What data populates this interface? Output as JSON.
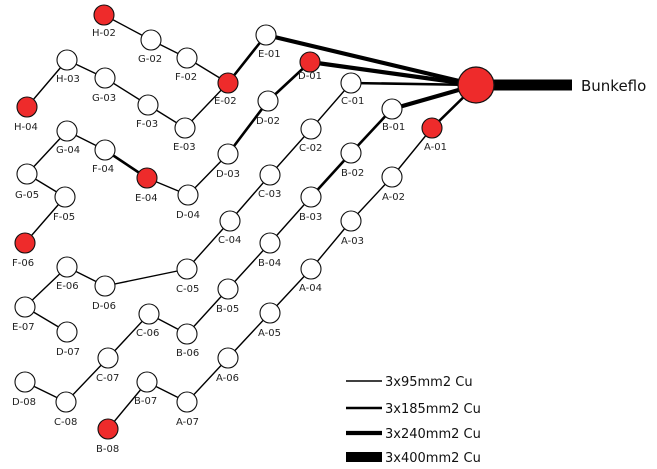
{
  "hub": {
    "label": "Bunkeflo",
    "color": "#ee2b2b"
  },
  "colors": {
    "unit": "#ffffff",
    "highlight": "#ee2b2b",
    "stroke": "#111111"
  },
  "nodes": [
    {
      "id": "H-02",
      "highlight": true
    },
    {
      "id": "G-02"
    },
    {
      "id": "F-02"
    },
    {
      "id": "E-02",
      "highlight": true
    },
    {
      "id": "E-01"
    },
    {
      "id": "H-03"
    },
    {
      "id": "H-04",
      "highlight": true
    },
    {
      "id": "G-03"
    },
    {
      "id": "F-03"
    },
    {
      "id": "E-03"
    },
    {
      "id": "D-01",
      "highlight": true
    },
    {
      "id": "D-02"
    },
    {
      "id": "D-03"
    },
    {
      "id": "D-04"
    },
    {
      "id": "E-04",
      "highlight": true
    },
    {
      "id": "F-04"
    },
    {
      "id": "G-04"
    },
    {
      "id": "G-05"
    },
    {
      "id": "F-05"
    },
    {
      "id": "F-06",
      "highlight": true
    },
    {
      "id": "C-01"
    },
    {
      "id": "C-02"
    },
    {
      "id": "C-03"
    },
    {
      "id": "C-04"
    },
    {
      "id": "C-05"
    },
    {
      "id": "D-06"
    },
    {
      "id": "E-06"
    },
    {
      "id": "E-07"
    },
    {
      "id": "D-07"
    },
    {
      "id": "B-01"
    },
    {
      "id": "B-02"
    },
    {
      "id": "B-03"
    },
    {
      "id": "B-04"
    },
    {
      "id": "B-05"
    },
    {
      "id": "B-06"
    },
    {
      "id": "C-06"
    },
    {
      "id": "C-07"
    },
    {
      "id": "C-08"
    },
    {
      "id": "D-08"
    },
    {
      "id": "A-01",
      "highlight": true
    },
    {
      "id": "A-02"
    },
    {
      "id": "A-03"
    },
    {
      "id": "A-04"
    },
    {
      "id": "A-05"
    },
    {
      "id": "A-06"
    },
    {
      "id": "A-07"
    },
    {
      "id": "B-07"
    },
    {
      "id": "B-08",
      "highlight": true
    }
  ],
  "connections": [
    {
      "from": "Bunkeflo",
      "to": "E-01",
      "cable": "3x240mm2 Cu"
    },
    {
      "from": "Bunkeflo",
      "to": "D-01",
      "cable": "3x240mm2 Cu"
    },
    {
      "from": "Bunkeflo",
      "to": "C-01",
      "cable": "3x185mm2 Cu"
    },
    {
      "from": "Bunkeflo",
      "to": "B-01",
      "cable": "3x240mm2 Cu"
    },
    {
      "from": "Bunkeflo",
      "to": "A-01",
      "cable": "3x185mm2 Cu"
    },
    {
      "from": "H-02",
      "to": "G-02",
      "cable": "3x95mm2 Cu"
    },
    {
      "from": "G-02",
      "to": "F-02",
      "cable": "3x95mm2 Cu"
    },
    {
      "from": "F-02",
      "to": "E-02",
      "cable": "3x95mm2 Cu"
    },
    {
      "from": "E-02",
      "to": "E-01",
      "cable": "3x185mm2 Cu"
    },
    {
      "from": "H-04",
      "to": "H-03",
      "cable": "3x95mm2 Cu"
    },
    {
      "from": "H-03",
      "to": "G-03",
      "cable": "3x95mm2 Cu"
    },
    {
      "from": "G-03",
      "to": "F-03",
      "cable": "3x95mm2 Cu"
    },
    {
      "from": "F-03",
      "to": "E-03",
      "cable": "3x95mm2 Cu"
    },
    {
      "from": "E-03",
      "to": "E-02",
      "cable": "3x95mm2 Cu"
    },
    {
      "from": "D-01",
      "to": "D-02",
      "cable": "3x185mm2 Cu"
    },
    {
      "from": "D-02",
      "to": "D-03",
      "cable": "3x185mm2 Cu"
    },
    {
      "from": "D-03",
      "to": "D-04",
      "cable": "3x95mm2 Cu"
    },
    {
      "from": "D-04",
      "to": "E-04",
      "cable": "3x95mm2 Cu"
    },
    {
      "from": "E-04",
      "to": "F-04",
      "cable": "3x185mm2 Cu"
    },
    {
      "from": "F-04",
      "to": "G-04",
      "cable": "3x95mm2 Cu"
    },
    {
      "from": "G-04",
      "to": "G-05",
      "cable": "3x95mm2 Cu"
    },
    {
      "from": "G-05",
      "to": "F-05",
      "cable": "3x95mm2 Cu"
    },
    {
      "from": "F-05",
      "to": "F-06",
      "cable": "3x95mm2 Cu"
    },
    {
      "from": "C-01",
      "to": "C-02",
      "cable": "3x95mm2 Cu"
    },
    {
      "from": "C-02",
      "to": "C-03",
      "cable": "3x95mm2 Cu"
    },
    {
      "from": "C-03",
      "to": "C-04",
      "cable": "3x95mm2 Cu"
    },
    {
      "from": "C-04",
      "to": "C-05",
      "cable": "3x95mm2 Cu"
    },
    {
      "from": "C-05",
      "to": "D-06",
      "cable": "3x95mm2 Cu"
    },
    {
      "from": "D-06",
      "to": "E-06",
      "cable": "3x95mm2 Cu"
    },
    {
      "from": "E-06",
      "to": "E-07",
      "cable": "3x95mm2 Cu"
    },
    {
      "from": "E-07",
      "to": "D-07",
      "cable": "3x95mm2 Cu"
    },
    {
      "from": "B-01",
      "to": "B-02",
      "cable": "3x185mm2 Cu"
    },
    {
      "from": "B-02",
      "to": "B-03",
      "cable": "3x185mm2 Cu"
    },
    {
      "from": "B-03",
      "to": "B-04",
      "cable": "3x95mm2 Cu"
    },
    {
      "from": "B-04",
      "to": "B-05",
      "cable": "3x95mm2 Cu"
    },
    {
      "from": "B-05",
      "to": "B-06",
      "cable": "3x95mm2 Cu"
    },
    {
      "from": "B-06",
      "to": "C-06",
      "cable": "3x95mm2 Cu"
    },
    {
      "from": "C-06",
      "to": "C-07",
      "cable": "3x95mm2 Cu"
    },
    {
      "from": "C-07",
      "to": "C-08",
      "cable": "3x95mm2 Cu"
    },
    {
      "from": "C-08",
      "to": "D-08",
      "cable": "3x95mm2 Cu"
    },
    {
      "from": "A-01",
      "to": "A-02",
      "cable": "3x95mm2 Cu"
    },
    {
      "from": "A-02",
      "to": "A-03",
      "cable": "3x95mm2 Cu"
    },
    {
      "from": "A-03",
      "to": "A-04",
      "cable": "3x95mm2 Cu"
    },
    {
      "from": "A-04",
      "to": "A-05",
      "cable": "3x95mm2 Cu"
    },
    {
      "from": "A-05",
      "to": "A-06",
      "cable": "3x95mm2 Cu"
    },
    {
      "from": "A-06",
      "to": "A-07",
      "cable": "3x95mm2 Cu"
    },
    {
      "from": "A-07",
      "to": "B-07",
      "cable": "3x95mm2 Cu"
    },
    {
      "from": "B-07",
      "to": "B-08",
      "cable": "3x95mm2 Cu"
    }
  ],
  "legend": [
    {
      "label": "3x95mm2 Cu"
    },
    {
      "label": "3x185mm2 Cu"
    },
    {
      "label": "3x240mm2 Cu"
    },
    {
      "label": "3x400mm2 Cu"
    }
  ]
}
